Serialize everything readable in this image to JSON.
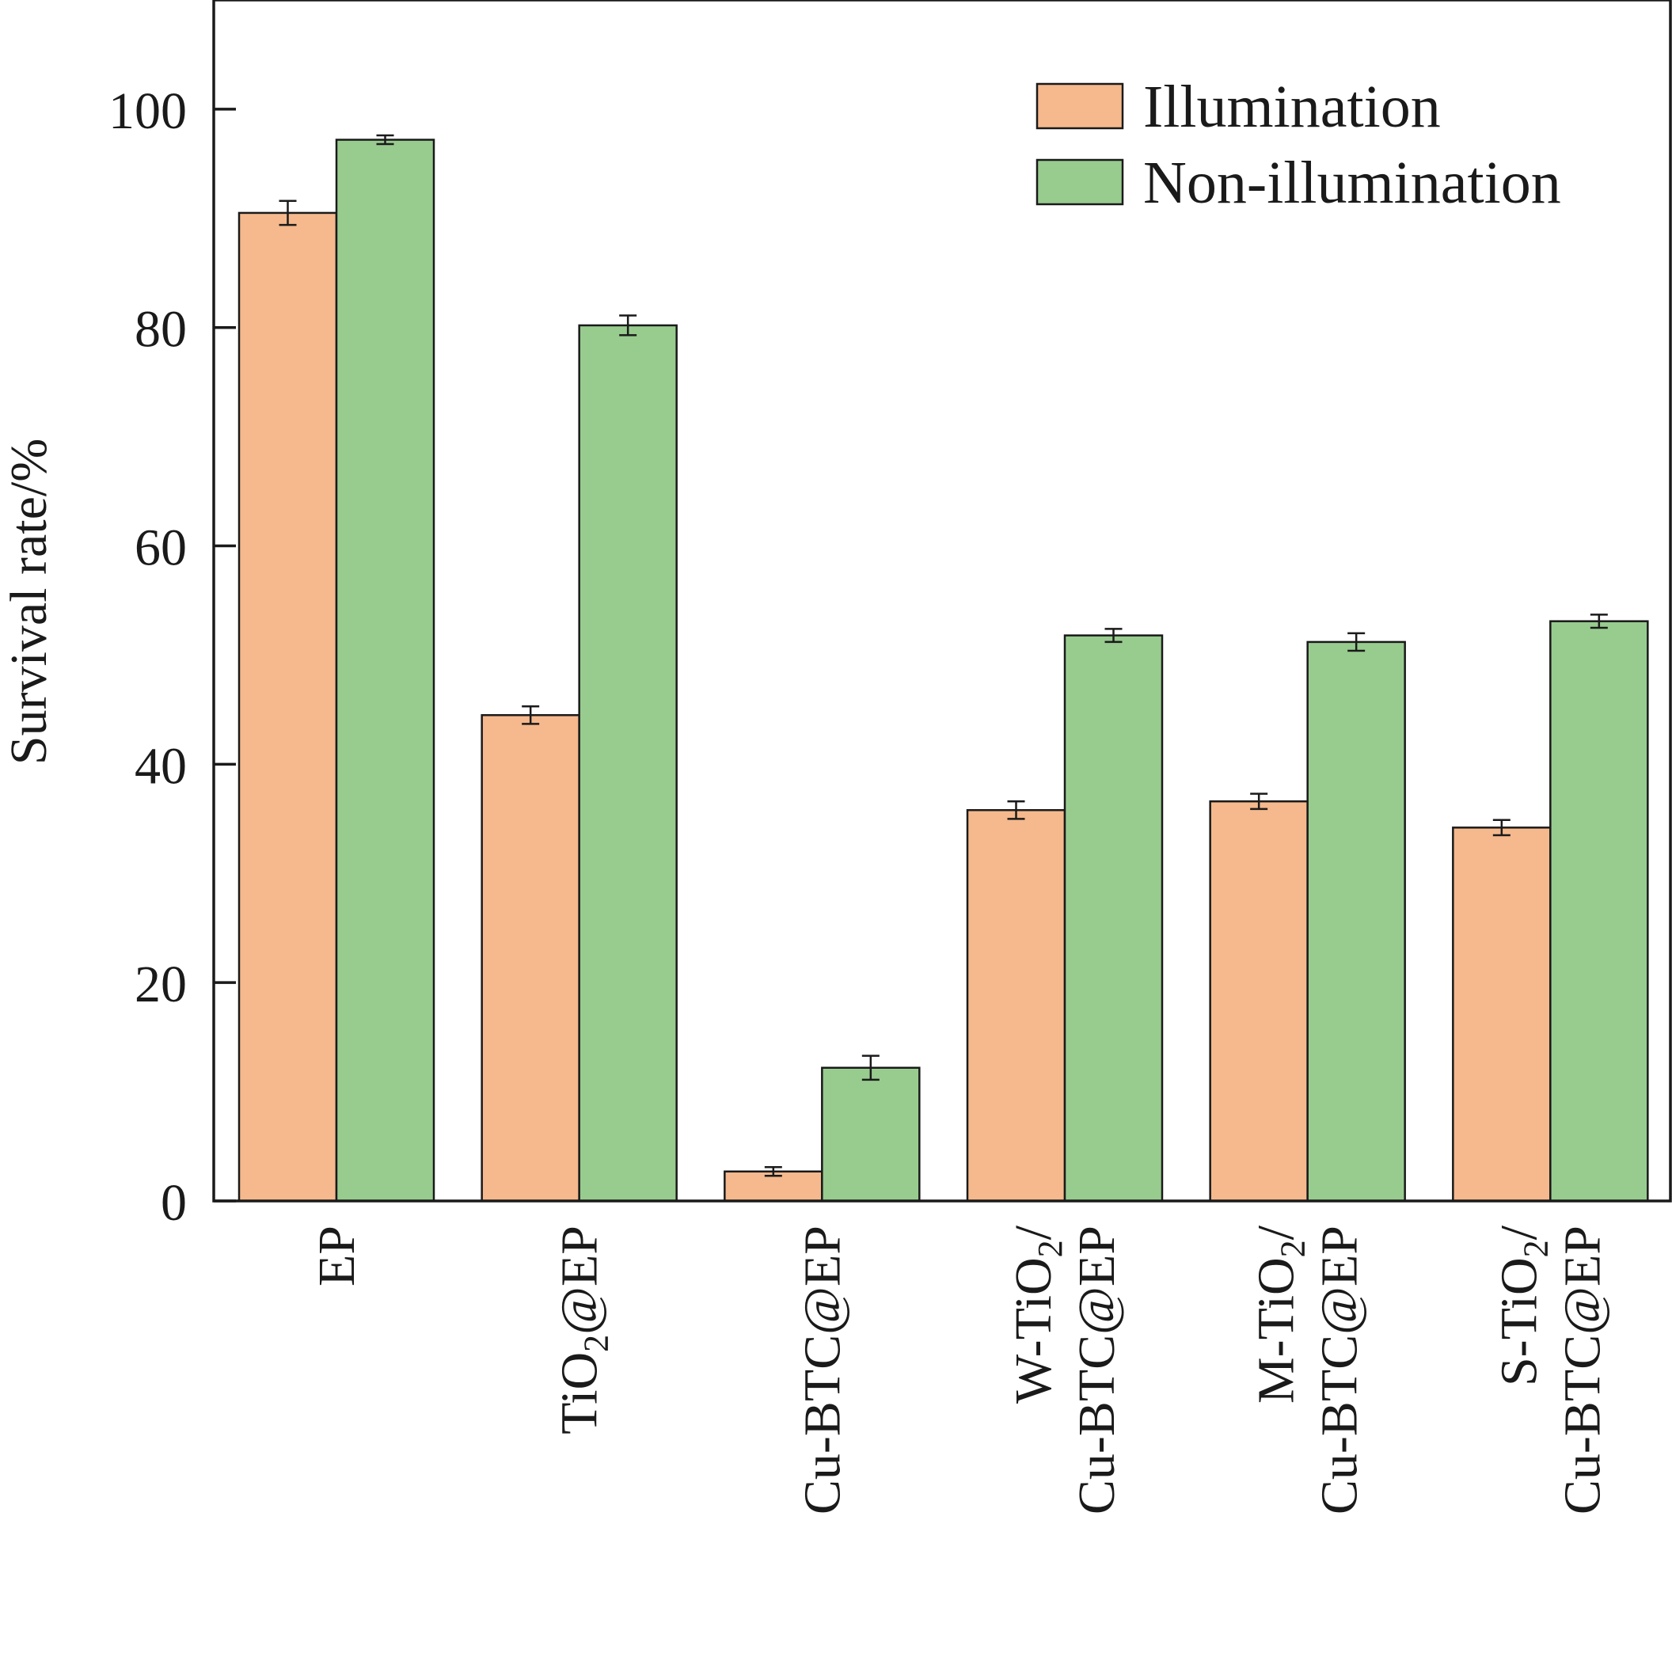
{
  "chart_data": {
    "type": "bar",
    "categories": [
      "EP",
      "TiO2@EP",
      "Cu-BTC@EP",
      "W-TiO2/Cu-BTC@EP",
      "M-TiO2/Cu-BTC@EP",
      "S-TiO2/Cu-BTC@EP"
    ],
    "category_labels": [
      [
        {
          "t": "EP"
        }
      ],
      [
        {
          "t": "TiO"
        },
        {
          "t": "2",
          "sub": true
        },
        {
          "t": "@EP"
        }
      ],
      [
        {
          "t": "Cu-BTC@EP"
        }
      ],
      [
        {
          "t": "W-TiO"
        },
        {
          "t": "2",
          "sub": true
        },
        {
          "t": "/"
        },
        {
          "br": true
        },
        {
          "t": "Cu-BTC@EP"
        }
      ],
      [
        {
          "t": "M-TiO"
        },
        {
          "t": "2",
          "sub": true
        },
        {
          "t": "/"
        },
        {
          "br": true
        },
        {
          "t": "Cu-BTC@EP"
        }
      ],
      [
        {
          "t": "S-TiO"
        },
        {
          "t": "2",
          "sub": true
        },
        {
          "t": "/"
        },
        {
          "br": true
        },
        {
          "t": "Cu-BTC@EP"
        }
      ]
    ],
    "series": [
      {
        "name": "Illumination",
        "color": "#f5b98d",
        "values": [
          90.5,
          44.5,
          2.7,
          35.8,
          36.6,
          34.2
        ],
        "errors": [
          1.1,
          0.8,
          0.4,
          0.8,
          0.7,
          0.7
        ]
      },
      {
        "name": "Non-illumination",
        "color": "#98cc8f",
        "values": [
          97.2,
          80.2,
          12.2,
          51.8,
          51.2,
          53.1
        ],
        "errors": [
          0.4,
          0.9,
          1.1,
          0.6,
          0.8,
          0.6
        ]
      }
    ],
    "xlabel": "",
    "ylabel": "Survival rate/%",
    "ylim": [
      0,
      110
    ],
    "yticks": [
      0,
      20,
      40,
      60,
      80,
      100
    ],
    "legend_position": "top-right",
    "grid": false
  }
}
